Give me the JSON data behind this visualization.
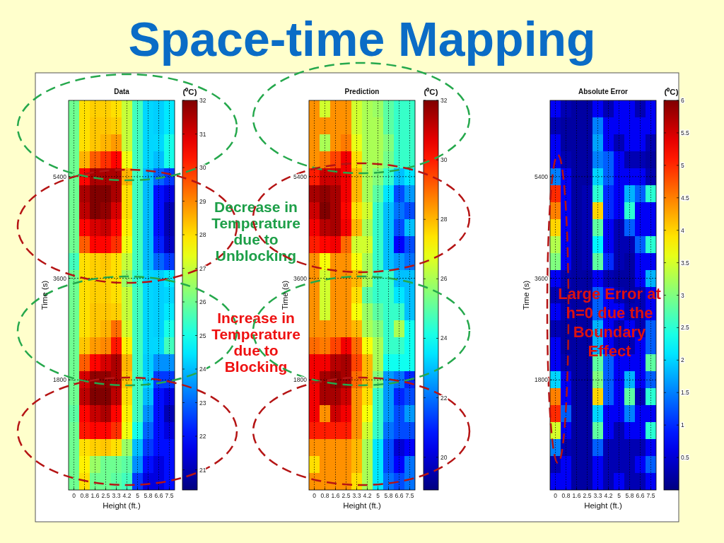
{
  "chart_data": [
    {
      "type": "other",
      "title": "Space-time Mapping"
    },
    {
      "type": "heatmap",
      "title": "Data",
      "xlabel": "Height (ft.)",
      "ylabel": "Time (s)",
      "clabel": "(⁰C)",
      "grid": true,
      "categories": [
        "0",
        "0.8",
        "1.6",
        "2.5",
        "3.3",
        "4.2",
        "5",
        "5.8",
        "6.6",
        "7.5"
      ],
      "y_categories": [
        null,
        null,
        null,
        null,
        "5400",
        null,
        null,
        null,
        null,
        null,
        "3600",
        null,
        null,
        null,
        null,
        null,
        "1800",
        null,
        null,
        null,
        null,
        null,
        null
      ],
      "clim": [
        20.4,
        32
      ],
      "cticks": [
        21,
        22,
        23,
        24,
        25,
        26,
        27,
        28,
        29,
        30,
        31,
        32
      ],
      "cells": [
        [
          26,
          28,
          28.2,
          28.2,
          28,
          27,
          25.5,
          24.3,
          24.2,
          24.5
        ],
        [
          26,
          28,
          28.3,
          28.3,
          28.2,
          27,
          25.5,
          24.3,
          24.2,
          24.5
        ],
        [
          26,
          28,
          28.3,
          28.5,
          28.8,
          27,
          25.5,
          24.3,
          24.3,
          25
        ],
        [
          26,
          28.5,
          29.5,
          30,
          30.5,
          27.5,
          25.5,
          24.3,
          24,
          25
        ],
        [
          26,
          30.5,
          31.5,
          31.5,
          31.5,
          28.5,
          25.5,
          24,
          23,
          22.5
        ],
        [
          26,
          31.5,
          32,
          32,
          31.5,
          28,
          25.5,
          24,
          22,
          21.5
        ],
        [
          26,
          31.3,
          32,
          31.8,
          31,
          28,
          25.5,
          24,
          22,
          21
        ],
        [
          26,
          30.5,
          31,
          31.2,
          30.5,
          27.8,
          25.5,
          24,
          22,
          21
        ],
        [
          26,
          29.5,
          30.5,
          30.5,
          30,
          27.5,
          25.5,
          24,
          22.2,
          21.2
        ],
        [
          25.5,
          28,
          28.2,
          28.3,
          28,
          27,
          25.5,
          24,
          23,
          22.5
        ],
        [
          26,
          28,
          28.2,
          28.2,
          28,
          26.5,
          25.3,
          24.3,
          24.2,
          24.5
        ],
        [
          26,
          28,
          28.2,
          28.2,
          28,
          27,
          25.5,
          24.3,
          24.2,
          24.3
        ],
        [
          26,
          28,
          28.3,
          28.3,
          28.2,
          27,
          25.5,
          24.3,
          24.2,
          24.5
        ],
        [
          26,
          28,
          28.3,
          28.5,
          29.3,
          27.2,
          25.5,
          24.3,
          24.2,
          25
        ],
        [
          26,
          28.3,
          28.8,
          29,
          30.3,
          27.8,
          25.5,
          24.3,
          24.3,
          25.5
        ],
        [
          26,
          29.5,
          30.5,
          31,
          31.5,
          28.5,
          25.5,
          24.2,
          23.5,
          23.5
        ],
        [
          26,
          31,
          31.8,
          31.8,
          31.5,
          28.3,
          25.5,
          24.3,
          22.5,
          22.5
        ],
        [
          26,
          31.3,
          32,
          32,
          31.3,
          28,
          25.5,
          24,
          22,
          21.5
        ],
        [
          25.8,
          30.5,
          31.2,
          31.5,
          30.5,
          27.8,
          25.5,
          23.5,
          22,
          21
        ],
        [
          26,
          30.3,
          30.5,
          30.5,
          30,
          27.5,
          25,
          23,
          22,
          21.5
        ],
        [
          26,
          28,
          28.2,
          28.3,
          28,
          26.5,
          24,
          22.5,
          22,
          22
        ],
        [
          26,
          27.8,
          26.5,
          26,
          26,
          25.8,
          23.5,
          22,
          21.5,
          22
        ],
        [
          26,
          28,
          26,
          26,
          25.8,
          25.5,
          22.5,
          21.5,
          21.5,
          22
        ]
      ],
      "annotations": [
        "Decrease in\nTemperature\ndue to\nUnblocking",
        "Increase in\nTemperature\ndue to\nBlocking"
      ]
    },
    {
      "type": "heatmap",
      "title": "Prediction",
      "xlabel": "Height (ft.)",
      "ylabel": "Time (s)",
      "clabel": "(⁰C)",
      "grid": true,
      "categories": [
        "0",
        "0.8",
        "1.6",
        "2.5",
        "3.3",
        "4.2",
        "5",
        "5.8",
        "6.6",
        "7.5"
      ],
      "y_categories": [
        null,
        null,
        null,
        null,
        "5400",
        null,
        null,
        null,
        null,
        null,
        "3600",
        null,
        null,
        null,
        null,
        null,
        "1800",
        null,
        null,
        null,
        null,
        null,
        null
      ],
      "clim": [
        18.9,
        32
      ],
      "cticks": [
        20,
        22,
        24,
        26,
        28,
        30,
        32
      ],
      "cells": [
        [
          28.5,
          26.5,
          28.5,
          28.5,
          26.5,
          26,
          25.8,
          25,
          24.5,
          24.5
        ],
        [
          28.5,
          28.5,
          28.5,
          28.5,
          26.5,
          26,
          26,
          25,
          24.5,
          24.5
        ],
        [
          28.5,
          26,
          28.5,
          28.8,
          26.8,
          26,
          26,
          25.5,
          24.5,
          24.5
        ],
        [
          28.5,
          28.8,
          29.5,
          30.5,
          27.5,
          26,
          26,
          25.3,
          24.5,
          24.5
        ],
        [
          30,
          31,
          31,
          30.5,
          28,
          26,
          25.5,
          24.5,
          23,
          23.5
        ],
        [
          31.5,
          31.8,
          31.5,
          30.5,
          28,
          26,
          25,
          23.5,
          21.5,
          22.5
        ],
        [
          31,
          32,
          31.5,
          30.3,
          27.5,
          26.5,
          24.5,
          23,
          22,
          21.5
        ],
        [
          30.5,
          31.3,
          31.5,
          30.5,
          28,
          26,
          24.5,
          23,
          21.5,
          23
        ],
        [
          30,
          30.3,
          30.5,
          29,
          26.5,
          26.5,
          24.5,
          23,
          20.5,
          21.5
        ],
        [
          28.5,
          27,
          28.5,
          28.5,
          27,
          26,
          24.5,
          23,
          22.5,
          22
        ],
        [
          28.5,
          26.5,
          28.5,
          28.5,
          28,
          26,
          24.5,
          24.5,
          23,
          23
        ],
        [
          28.5,
          26.5,
          28.5,
          28.5,
          27.5,
          25,
          24.5,
          24.5,
          23.5,
          23
        ],
        [
          28.5,
          26.5,
          28.5,
          28.5,
          27,
          25.8,
          25,
          24.5,
          24.5,
          23
        ],
        [
          28.5,
          28.5,
          28.5,
          28.5,
          28,
          26,
          25.5,
          24.5,
          26,
          24
        ],
        [
          29,
          28.8,
          29.5,
          30.5,
          29,
          27,
          26,
          24.5,
          24.5,
          24
        ],
        [
          30.5,
          30.5,
          31.3,
          31.5,
          29.5,
          28,
          26,
          24,
          24,
          24
        ],
        [
          30.5,
          31.5,
          31.8,
          31.5,
          29,
          28,
          25.5,
          22.5,
          22,
          21
        ],
        [
          30.5,
          31.5,
          31.5,
          31,
          28.5,
          27.5,
          24.5,
          22.5,
          21,
          21.5
        ],
        [
          30.5,
          28.5,
          31,
          30.5,
          28.5,
          27,
          24.5,
          22.5,
          21.5,
          22.5
        ],
        [
          30,
          30,
          30,
          30,
          28.5,
          26.5,
          24.5,
          22,
          21.5,
          21.5
        ],
        [
          28.5,
          28.5,
          28.5,
          28.5,
          28,
          26,
          23.5,
          21.5,
          20,
          20.5
        ],
        [
          27.5,
          28.5,
          28.5,
          28.5,
          28,
          26,
          23.5,
          21.5,
          20.5,
          22
        ],
        [
          28.5,
          28.5,
          28.5,
          28.5,
          27.5,
          26,
          23.5,
          22,
          21.5,
          22
        ]
      ]
    },
    {
      "type": "heatmap",
      "title": "Absolute Error",
      "xlabel": "Height (ft.)",
      "ylabel": "Time (s)",
      "clabel": "(⁰C)",
      "grid": true,
      "categories": [
        "0",
        "0.8",
        "1.6",
        "2.5",
        "3.3",
        "4.2",
        "5",
        "5.8",
        "6.6",
        "7.5"
      ],
      "y_categories": [
        null,
        null,
        null,
        null,
        "5400",
        null,
        null,
        null,
        null,
        null,
        "3600",
        null,
        null,
        null,
        null,
        null,
        "1800",
        null,
        null,
        null,
        null,
        null,
        null
      ],
      "clim": [
        0,
        6
      ],
      "cticks": [
        0.5,
        1,
        1.5,
        2,
        2.5,
        3,
        3.5,
        4,
        4.5,
        5,
        5.5,
        6
      ],
      "cells": [
        [
          0.7,
          0.3,
          0.2,
          0.2,
          0.7,
          0.3,
          0.7,
          0.7,
          0.3,
          0.7
        ],
        [
          0.3,
          0.2,
          0.2,
          0.2,
          1.5,
          0.7,
          0.7,
          0.7,
          0.7,
          0.7
        ],
        [
          0.7,
          0.2,
          0.2,
          0.2,
          1.7,
          0.7,
          0.3,
          0.7,
          0.7,
          0.3
        ],
        [
          0.7,
          0.3,
          0.2,
          0.2,
          1.5,
          1.3,
          0.7,
          0.3,
          0.3,
          0.2
        ],
        [
          1.5,
          0.7,
          0.2,
          0.2,
          2,
          1.3,
          0.7,
          0.7,
          0.7,
          0.3
        ],
        [
          5,
          0.7,
          0.2,
          0.3,
          2.5,
          1,
          0.7,
          1.8,
          1.3,
          2.5
        ],
        [
          4.5,
          0.7,
          0.2,
          0.3,
          4,
          1,
          0.7,
          2.5,
          0.7,
          0.7
        ],
        [
          4,
          0.7,
          0.2,
          0.3,
          2.8,
          0.7,
          0.3,
          1.3,
          0.7,
          0.7
        ],
        [
          3.3,
          0.7,
          0.2,
          0.3,
          2.2,
          0.7,
          0.3,
          0.3,
          1.3,
          2.5
        ],
        [
          3,
          0.7,
          0.2,
          0.3,
          2.8,
          1,
          0.3,
          0.2,
          0.7,
          0.7
        ],
        [
          0.7,
          0.3,
          0.2,
          0.2,
          0.7,
          0.3,
          0.2,
          0.2,
          0.7,
          1.8
        ],
        [
          0.3,
          0.2,
          0.2,
          0.2,
          1.3,
          0.7,
          0.3,
          0.2,
          0.3,
          0.7
        ],
        [
          0.7,
          0.3,
          0.2,
          0.2,
          1.3,
          0.7,
          0.7,
          0.3,
          0.3,
          0.7
        ],
        [
          0.3,
          0.2,
          0.2,
          0.2,
          1.8,
          0.7,
          0.3,
          0.7,
          0.3,
          1.3
        ],
        [
          0.7,
          0.2,
          0.2,
          0.2,
          1.8,
          0.7,
          0.3,
          0.3,
          0.7,
          1.3
        ],
        [
          0.7,
          0.3,
          0.2,
          0.2,
          2.8,
          1.3,
          0.7,
          0.7,
          0.7,
          2.8
        ],
        [
          2,
          0.7,
          0.2,
          0.2,
          3,
          1.3,
          0.7,
          1.8,
          0.7,
          1.3
        ],
        [
          4.5,
          0.7,
          0.2,
          0.2,
          4,
          1.3,
          0.7,
          2.8,
          0.3,
          2.5
        ],
        [
          5,
          1.3,
          0.2,
          0.2,
          2,
          0.7,
          0.7,
          1.5,
          0.7,
          0.7
        ],
        [
          3.5,
          0.7,
          0.2,
          0.2,
          2.8,
          0.7,
          0.3,
          0.7,
          0.7,
          2.5
        ],
        [
          1.5,
          0.3,
          0.2,
          0.2,
          1.3,
          0.3,
          0.3,
          0.3,
          0.3,
          0.7
        ],
        [
          0.3,
          0.7,
          0.2,
          0.2,
          0.7,
          0.3,
          0.3,
          0.3,
          0.7,
          1.3
        ],
        [
          0.7,
          0.7,
          0.2,
          0.2,
          0.7,
          0.3,
          0.7,
          0.3,
          0.3,
          0.7
        ]
      ],
      "annotations": [
        "Large Error at\nh=0 due the\nBoundary\nEffect"
      ]
    }
  ]
}
